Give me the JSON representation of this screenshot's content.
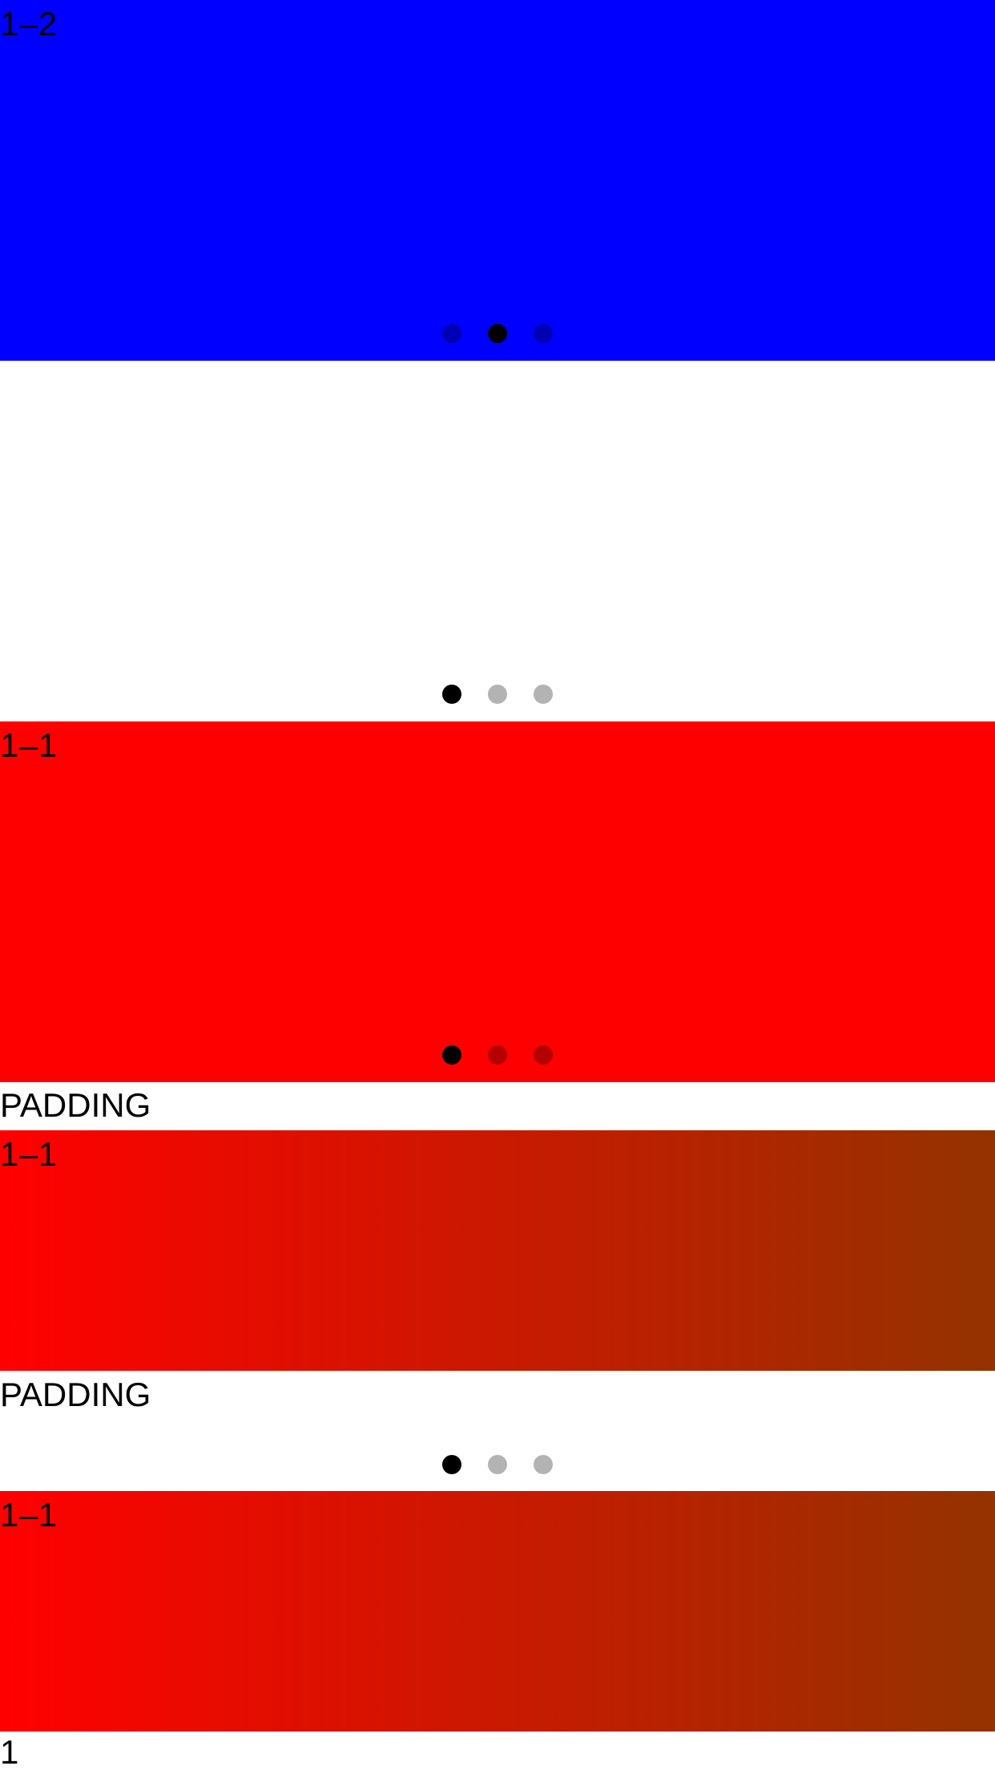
{
  "carousel_blue": {
    "slide_label": "1–2",
    "color": "#0000ff",
    "dots_total": 3,
    "active_dot": 2
  },
  "carousel_white": {
    "color": "#ffffff",
    "dots_total": 3,
    "active_dot": 1
  },
  "carousel_red": {
    "slide_label": "1–1",
    "color": "#ff0000",
    "dots_total": 3,
    "active_dot": 1
  },
  "padding_top_label": "PADDING",
  "gradient_slide_1": {
    "slide_label": "1–1",
    "gradient_start": "#ff0000",
    "gradient_end": "#933300"
  },
  "padding_bottom_label": "PADDING",
  "page_indicator": {
    "dots_total": 3,
    "active_dot": 1
  },
  "gradient_slide_2": {
    "slide_label": "1–1",
    "gradient_start": "#ff0000",
    "gradient_end": "#933300"
  },
  "footer_text": "1"
}
